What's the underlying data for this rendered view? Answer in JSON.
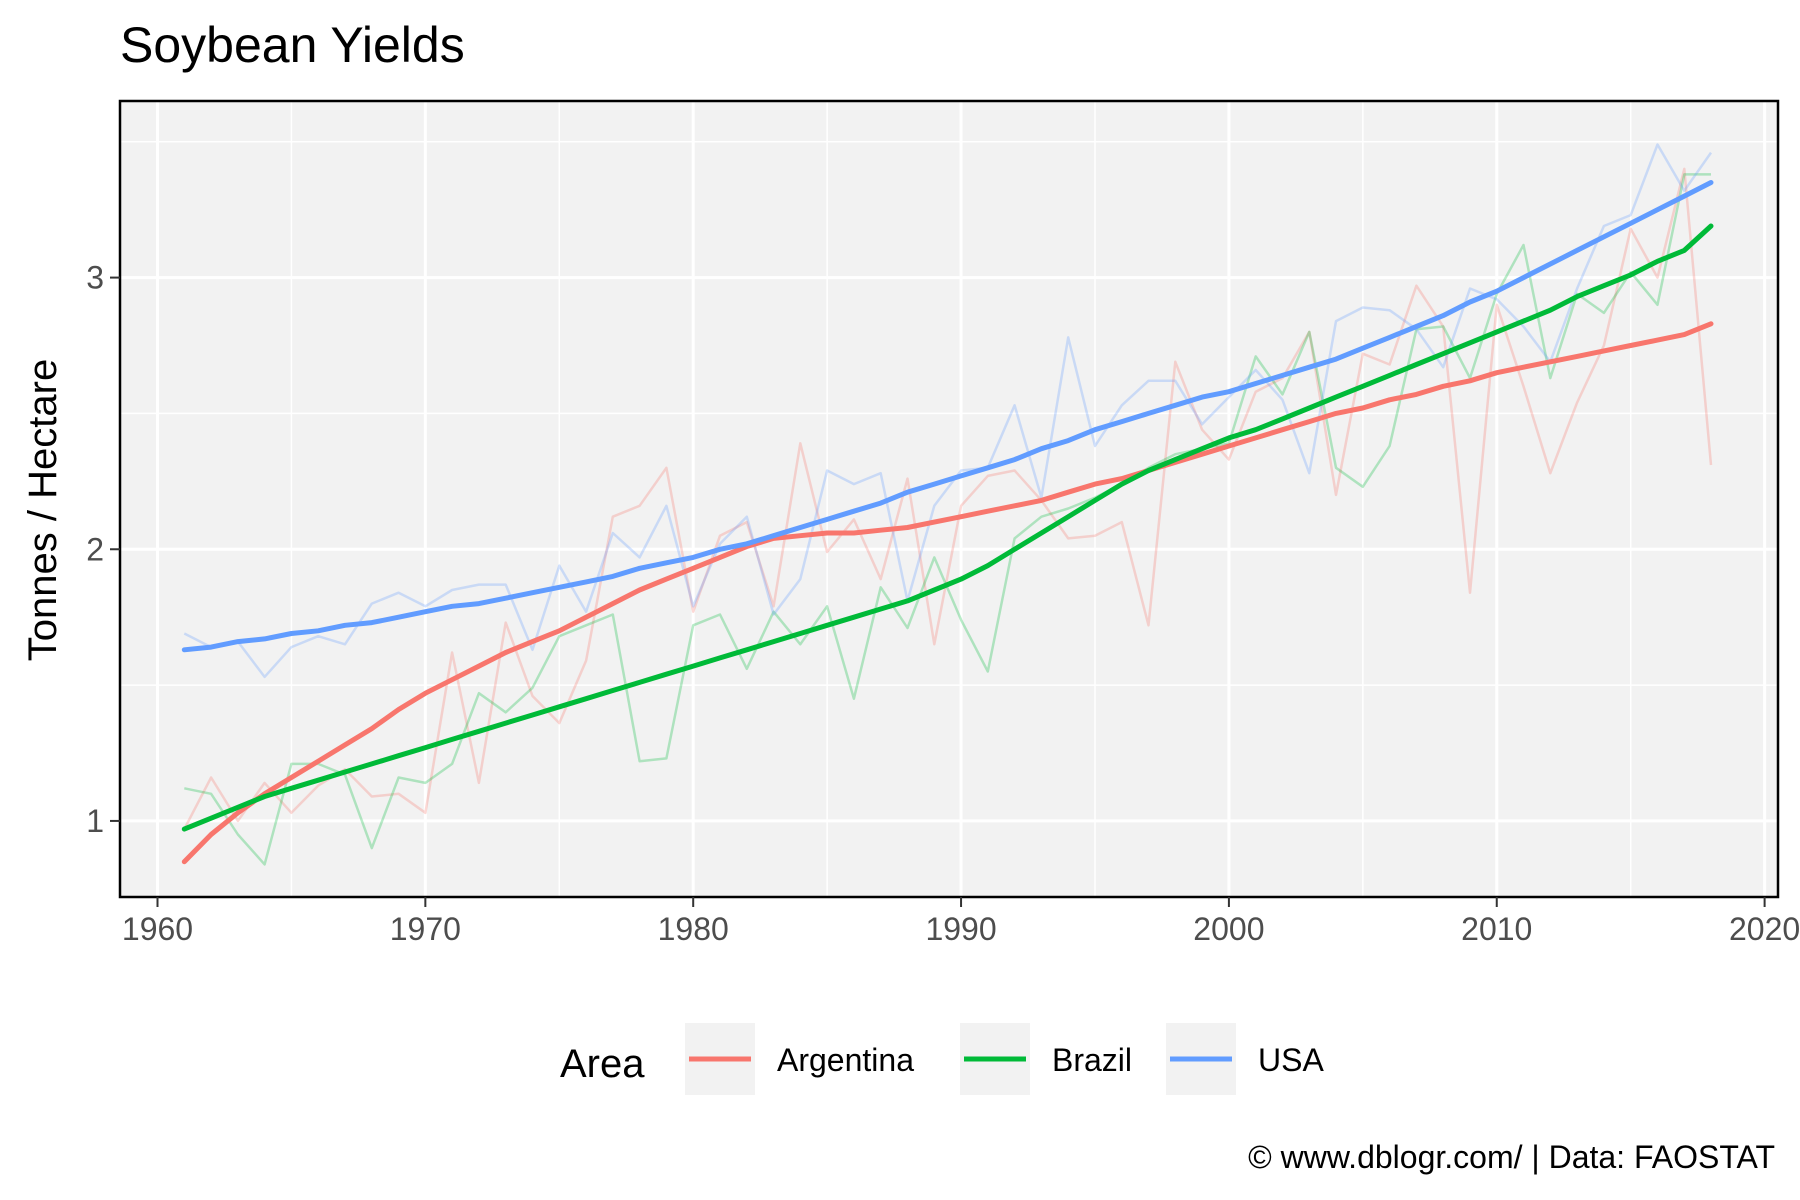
{
  "chart_data": {
    "type": "line",
    "title": "Soybean Yields",
    "xlabel": "",
    "ylabel": "Tonnes / Hectare",
    "xlim": [
      1958.6,
      2020.5
    ],
    "ylim": [
      0.72,
      3.65
    ],
    "x_ticks": [
      1960,
      1970,
      1980,
      1990,
      2000,
      2010,
      2020
    ],
    "y_ticks": [
      1,
      2,
      3
    ],
    "grid": true,
    "legend": {
      "title": "Area",
      "position": "bottom"
    },
    "caption": "© www.dblogr.com/ | Data: FAOSTAT",
    "x": [
      1961,
      1962,
      1963,
      1964,
      1965,
      1966,
      1967,
      1968,
      1969,
      1970,
      1971,
      1972,
      1973,
      1974,
      1975,
      1976,
      1977,
      1978,
      1979,
      1980,
      1981,
      1982,
      1983,
      1984,
      1985,
      1986,
      1987,
      1988,
      1989,
      1990,
      1991,
      1992,
      1993,
      1994,
      1995,
      1996,
      1997,
      1998,
      1999,
      2000,
      2001,
      2002,
      2003,
      2004,
      2005,
      2006,
      2007,
      2008,
      2009,
      2010,
      2011,
      2012,
      2013,
      2014,
      2015,
      2016,
      2017,
      2018
    ],
    "series": [
      {
        "name": "Argentina",
        "color": "#F8766D",
        "raw": [
          0.97,
          1.16,
          1.0,
          1.14,
          1.03,
          1.13,
          1.19,
          1.09,
          1.1,
          1.03,
          1.62,
          1.14,
          1.73,
          1.46,
          1.36,
          1.59,
          2.12,
          2.16,
          2.3,
          1.77,
          2.05,
          2.1,
          1.79,
          2.39,
          1.99,
          2.11,
          1.89,
          2.26,
          1.65,
          2.16,
          2.27,
          2.29,
          2.18,
          2.04,
          2.05,
          2.1,
          1.72,
          2.69,
          2.44,
          2.33,
          2.58,
          2.63,
          2.8,
          2.2,
          2.72,
          2.68,
          2.97,
          2.82,
          1.84,
          2.9,
          2.6,
          2.28,
          2.54,
          2.75,
          3.18,
          3.0,
          3.4,
          2.31
        ],
        "smooth": [
          0.85,
          0.95,
          1.03,
          1.1,
          1.16,
          1.22,
          1.28,
          1.34,
          1.41,
          1.47,
          1.52,
          1.57,
          1.62,
          1.66,
          1.7,
          1.75,
          1.8,
          1.85,
          1.89,
          1.93,
          1.97,
          2.01,
          2.04,
          2.05,
          2.06,
          2.06,
          2.07,
          2.08,
          2.1,
          2.12,
          2.14,
          2.16,
          2.18,
          2.21,
          2.24,
          2.26,
          2.29,
          2.32,
          2.35,
          2.38,
          2.41,
          2.44,
          2.47,
          2.5,
          2.52,
          2.55,
          2.57,
          2.6,
          2.62,
          2.65,
          2.67,
          2.69,
          2.71,
          2.73,
          2.75,
          2.77,
          2.79,
          2.83
        ]
      },
      {
        "name": "Brazil",
        "color": "#00BA38",
        "raw": [
          1.12,
          1.1,
          0.95,
          0.84,
          1.21,
          1.21,
          1.17,
          0.9,
          1.16,
          1.14,
          1.21,
          1.47,
          1.4,
          1.49,
          1.68,
          1.72,
          1.76,
          1.22,
          1.23,
          1.72,
          1.76,
          1.56,
          1.77,
          1.65,
          1.79,
          1.45,
          1.86,
          1.71,
          1.97,
          1.74,
          1.55,
          2.04,
          2.12,
          2.15,
          2.19,
          2.24,
          2.3,
          2.35,
          2.37,
          2.39,
          2.71,
          2.57,
          2.8,
          2.3,
          2.23,
          2.38,
          2.81,
          2.82,
          2.63,
          2.94,
          3.12,
          2.63,
          2.94,
          2.87,
          3.02,
          2.9,
          3.38,
          3.38
        ],
        "smooth": [
          0.97,
          1.01,
          1.05,
          1.09,
          1.12,
          1.15,
          1.18,
          1.21,
          1.24,
          1.27,
          1.3,
          1.33,
          1.36,
          1.39,
          1.42,
          1.45,
          1.48,
          1.51,
          1.54,
          1.57,
          1.6,
          1.63,
          1.66,
          1.69,
          1.72,
          1.75,
          1.78,
          1.81,
          1.85,
          1.89,
          1.94,
          2.0,
          2.06,
          2.12,
          2.18,
          2.24,
          2.29,
          2.33,
          2.37,
          2.41,
          2.44,
          2.48,
          2.52,
          2.56,
          2.6,
          2.64,
          2.68,
          2.72,
          2.76,
          2.8,
          2.84,
          2.88,
          2.93,
          2.97,
          3.01,
          3.06,
          3.1,
          3.19
        ]
      },
      {
        "name": "USA",
        "color": "#619CFF",
        "raw": [
          1.69,
          1.64,
          1.66,
          1.53,
          1.64,
          1.68,
          1.65,
          1.8,
          1.84,
          1.79,
          1.85,
          1.87,
          1.87,
          1.63,
          1.94,
          1.77,
          2.06,
          1.97,
          2.16,
          1.79,
          2.02,
          2.12,
          1.76,
          1.89,
          2.29,
          2.24,
          2.28,
          1.81,
          2.16,
          2.29,
          2.3,
          2.53,
          2.19,
          2.78,
          2.38,
          2.53,
          2.62,
          2.62,
          2.46,
          2.56,
          2.66,
          2.55,
          2.28,
          2.84,
          2.89,
          2.88,
          2.81,
          2.67,
          2.96,
          2.92,
          2.82,
          2.69,
          2.96,
          3.19,
          3.23,
          3.49,
          3.32,
          3.46
        ],
        "smooth": [
          1.63,
          1.64,
          1.66,
          1.67,
          1.69,
          1.7,
          1.72,
          1.73,
          1.75,
          1.77,
          1.79,
          1.8,
          1.82,
          1.84,
          1.86,
          1.88,
          1.9,
          1.93,
          1.95,
          1.97,
          2.0,
          2.02,
          2.05,
          2.08,
          2.11,
          2.14,
          2.17,
          2.21,
          2.24,
          2.27,
          2.3,
          2.33,
          2.37,
          2.4,
          2.44,
          2.47,
          2.5,
          2.53,
          2.56,
          2.58,
          2.61,
          2.64,
          2.67,
          2.7,
          2.74,
          2.78,
          2.82,
          2.86,
          2.91,
          2.95,
          3.0,
          3.05,
          3.1,
          3.15,
          3.2,
          3.25,
          3.3,
          3.35
        ]
      }
    ]
  }
}
